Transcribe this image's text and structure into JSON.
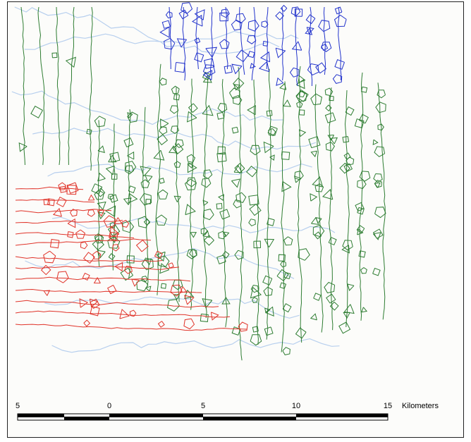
{
  "scale_bar": {
    "labels": [
      "5",
      "0",
      "5",
      "10",
      "15"
    ],
    "unit": "Kilometers"
  }
}
